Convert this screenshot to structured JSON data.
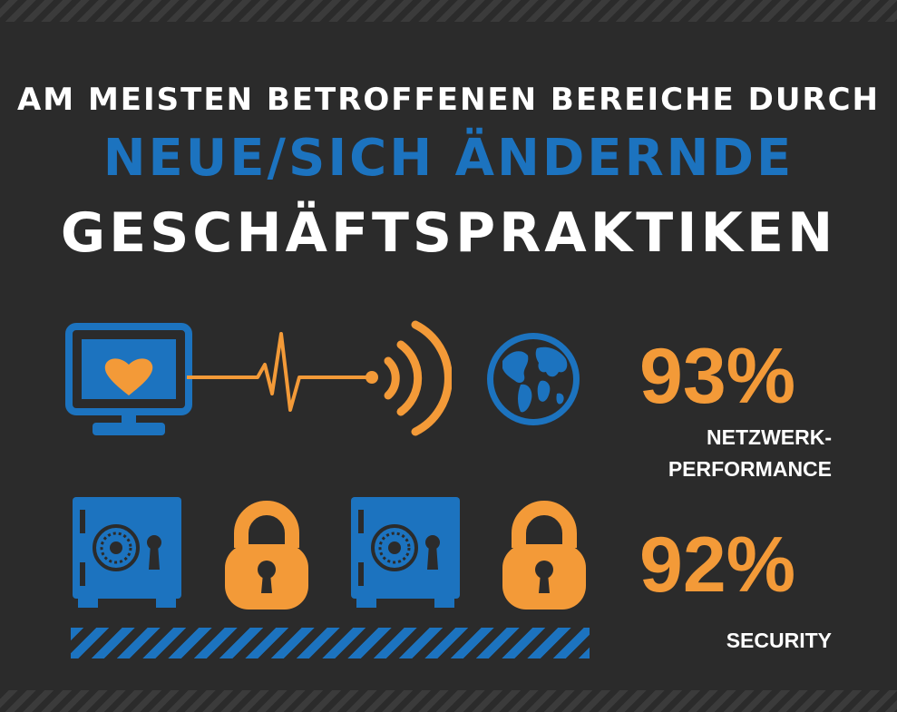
{
  "header": {
    "line1": "AM MEISTEN BETROFFENEN BEREICHE DURCH",
    "line2": "NEUE/SICH ÄNDERNDE",
    "line3": "GESCHÄFTSPRAKTIKEN"
  },
  "stats": [
    {
      "value": "93%",
      "label_line1": "NETZWERK-",
      "label_line2": "PERFORMANCE"
    },
    {
      "value": "92%",
      "label_line1": "SECURITY"
    }
  ],
  "icons": [
    "monitor-heart-icon",
    "pulse-line-icon",
    "wifi-signal-icon",
    "globe-icon",
    "safe-icon",
    "padlock-icon",
    "safe-icon",
    "padlock-icon"
  ],
  "colors": {
    "background": "#2b2b2b",
    "blue": "#1c73bf",
    "orange": "#f39a38",
    "white": "#ffffff"
  }
}
